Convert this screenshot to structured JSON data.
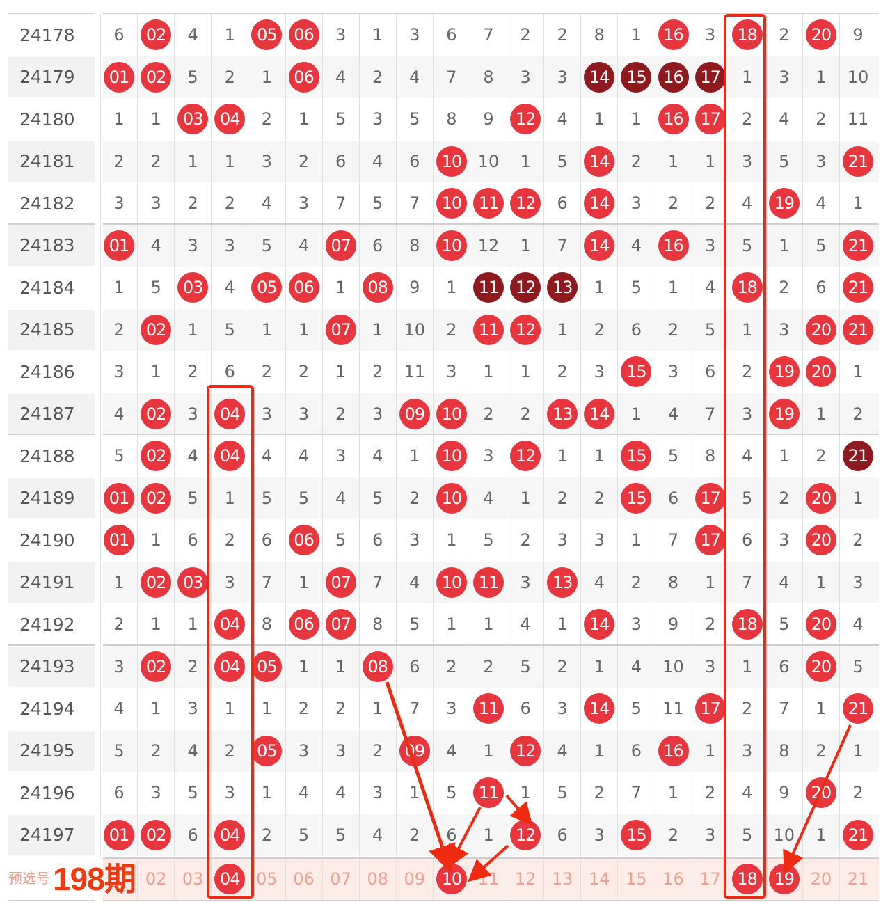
{
  "colors": {
    "ball": "#e8363e",
    "ball_dark": "#8e1a1f",
    "annotation": "#ee2a10",
    "prediction_text": "#f0a090"
  },
  "chart_data": {
    "type": "table",
    "columns": [
      "01",
      "02",
      "03",
      "04",
      "05",
      "06",
      "07",
      "08",
      "09",
      "10",
      "11",
      "12",
      "13",
      "14",
      "15",
      "16",
      "17",
      "18",
      "19",
      "20",
      "21"
    ],
    "rows": [
      {
        "period": "24178",
        "cells": [
          "6",
          "02",
          "4",
          "1",
          "05",
          "06",
          "3",
          "1",
          "3",
          "6",
          "7",
          "2",
          "2",
          "8",
          "1",
          "16",
          "3",
          "18",
          "2",
          "20",
          "9"
        ]
      },
      {
        "period": "24179",
        "cells": [
          "01",
          "02",
          "5",
          "2",
          "1",
          "06",
          "4",
          "2",
          "4",
          "7",
          "8",
          "3",
          "3",
          "14",
          "15",
          "16",
          "17",
          "1",
          "3",
          "1",
          "10"
        ],
        "dark": [
          14,
          15,
          16,
          17
        ]
      },
      {
        "period": "24180",
        "cells": [
          "1",
          "1",
          "03",
          "04",
          "2",
          "1",
          "5",
          "3",
          "5",
          "8",
          "9",
          "12",
          "4",
          "1",
          "1",
          "16",
          "17",
          "2",
          "4",
          "2",
          "11"
        ]
      },
      {
        "period": "24181",
        "cells": [
          "2",
          "2",
          "1",
          "1",
          "3",
          "2",
          "6",
          "4",
          "6",
          "10",
          "10",
          "1",
          "5",
          "14",
          "2",
          "1",
          "1",
          "3",
          "5",
          "3",
          "21"
        ]
      },
      {
        "period": "24182",
        "cells": [
          "3",
          "3",
          "2",
          "2",
          "4",
          "3",
          "7",
          "5",
          "7",
          "10",
          "11",
          "12",
          "6",
          "14",
          "3",
          "2",
          "2",
          "4",
          "19",
          "4",
          "1"
        ]
      },
      {
        "period": "24183",
        "cells": [
          "01",
          "4",
          "3",
          "3",
          "5",
          "4",
          "07",
          "6",
          "8",
          "10",
          "12",
          "1",
          "7",
          "14",
          "4",
          "16",
          "3",
          "5",
          "1",
          "5",
          "21"
        ]
      },
      {
        "period": "24184",
        "cells": [
          "1",
          "5",
          "03",
          "4",
          "05",
          "06",
          "1",
          "08",
          "9",
          "1",
          "11",
          "12",
          "13",
          "1",
          "5",
          "1",
          "4",
          "18",
          "2",
          "6",
          "21"
        ],
        "dark": [
          11,
          12,
          13
        ]
      },
      {
        "period": "24185",
        "cells": [
          "2",
          "02",
          "1",
          "5",
          "1",
          "1",
          "07",
          "1",
          "10",
          "2",
          "11",
          "12",
          "1",
          "2",
          "6",
          "2",
          "5",
          "1",
          "3",
          "20",
          "21"
        ]
      },
      {
        "period": "24186",
        "cells": [
          "3",
          "1",
          "2",
          "6",
          "2",
          "2",
          "1",
          "2",
          "11",
          "3",
          "1",
          "1",
          "2",
          "3",
          "15",
          "3",
          "6",
          "2",
          "19",
          "20",
          "1"
        ]
      },
      {
        "period": "24187",
        "cells": [
          "4",
          "02",
          "3",
          "04",
          "3",
          "3",
          "2",
          "3",
          "09",
          "10",
          "2",
          "2",
          "13",
          "14",
          "1",
          "4",
          "7",
          "3",
          "19",
          "1",
          "2"
        ]
      },
      {
        "period": "24188",
        "cells": [
          "5",
          "02",
          "4",
          "04",
          "4",
          "4",
          "3",
          "4",
          "1",
          "10",
          "3",
          "12",
          "1",
          "1",
          "15",
          "5",
          "8",
          "4",
          "1",
          "2",
          "21"
        ],
        "dark": [
          21
        ]
      },
      {
        "period": "24189",
        "cells": [
          "01",
          "02",
          "5",
          "1",
          "5",
          "5",
          "4",
          "5",
          "2",
          "10",
          "4",
          "1",
          "2",
          "2",
          "15",
          "6",
          "17",
          "5",
          "2",
          "20",
          "1"
        ]
      },
      {
        "period": "24190",
        "cells": [
          "01",
          "1",
          "6",
          "2",
          "6",
          "06",
          "5",
          "6",
          "3",
          "1",
          "5",
          "2",
          "3",
          "3",
          "1",
          "7",
          "17",
          "6",
          "3",
          "20",
          "2"
        ]
      },
      {
        "period": "24191",
        "cells": [
          "1",
          "02",
          "03",
          "3",
          "7",
          "1",
          "07",
          "7",
          "4",
          "10",
          "11",
          "3",
          "13",
          "4",
          "2",
          "8",
          "1",
          "7",
          "4",
          "1",
          "3"
        ]
      },
      {
        "period": "24192",
        "cells": [
          "2",
          "1",
          "1",
          "04",
          "8",
          "06",
          "07",
          "8",
          "5",
          "1",
          "1",
          "4",
          "1",
          "14",
          "3",
          "9",
          "2",
          "18",
          "5",
          "20",
          "4"
        ]
      },
      {
        "period": "24193",
        "cells": [
          "3",
          "02",
          "2",
          "04",
          "05",
          "1",
          "1",
          "08",
          "6",
          "2",
          "2",
          "5",
          "2",
          "1",
          "4",
          "10",
          "3",
          "1",
          "6",
          "20",
          "5"
        ]
      },
      {
        "period": "24194",
        "cells": [
          "4",
          "1",
          "3",
          "1",
          "1",
          "2",
          "2",
          "1",
          "7",
          "3",
          "11",
          "6",
          "3",
          "14",
          "5",
          "11",
          "17",
          "2",
          "7",
          "1",
          "21"
        ]
      },
      {
        "period": "24195",
        "cells": [
          "5",
          "2",
          "4",
          "2",
          "05",
          "3",
          "3",
          "2",
          "09",
          "4",
          "1",
          "12",
          "4",
          "1",
          "6",
          "16",
          "1",
          "3",
          "8",
          "2",
          "1"
        ]
      },
      {
        "period": "24196",
        "cells": [
          "6",
          "3",
          "5",
          "3",
          "1",
          "4",
          "4",
          "3",
          "1",
          "5",
          "11",
          "1",
          "5",
          "2",
          "7",
          "1",
          "2",
          "4",
          "9",
          "20",
          "2"
        ]
      },
      {
        "period": "24197",
        "cells": [
          "01",
          "02",
          "6",
          "04",
          "2",
          "5",
          "5",
          "4",
          "2",
          "6",
          "1",
          "12",
          "6",
          "3",
          "15",
          "2",
          "3",
          "5",
          "10",
          "1",
          "21"
        ]
      }
    ],
    "prediction": {
      "label": "预选号",
      "selected": [
        "04",
        "10",
        "18",
        "19"
      ]
    }
  },
  "annotation": {
    "text": "198期"
  }
}
